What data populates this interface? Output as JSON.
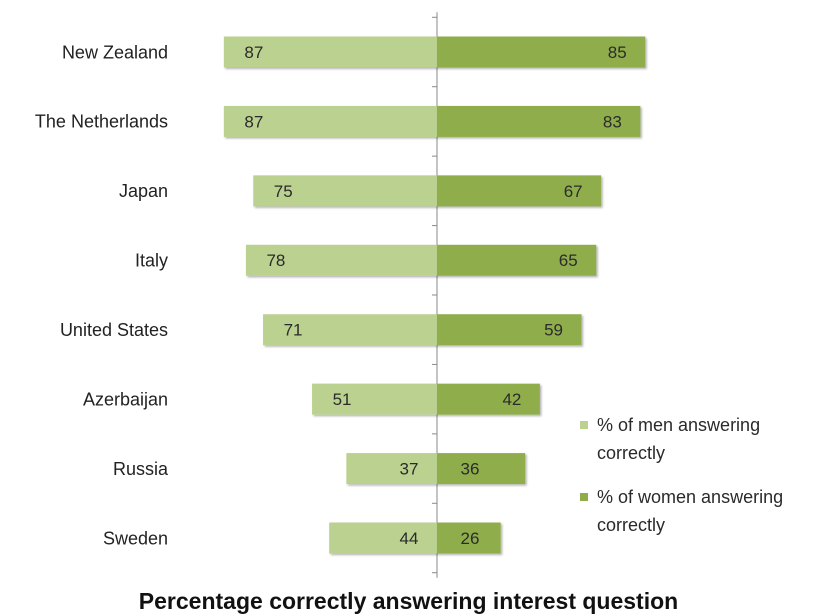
{
  "chart_data": {
    "type": "bar",
    "orientation": "horizontal",
    "title": "Percentage correctly answering interest question",
    "categories": [
      "New Zealand",
      "The Netherlands",
      "Japan",
      "Italy",
      "United States",
      "Azerbaijan",
      "Russia",
      "Sweden"
    ],
    "series": [
      {
        "name": "% of men answering correctly",
        "color": "#bbd18f",
        "values": [
          87,
          87,
          75,
          78,
          71,
          51,
          37,
          44
        ]
      },
      {
        "name": "% of women answering correctly",
        "color": "#8fae4b",
        "values": [
          85,
          83,
          67,
          65,
          59,
          42,
          36,
          26
        ]
      }
    ],
    "xlim": [
      0,
      100
    ],
    "grid": false,
    "data_labels": true,
    "legend": "right"
  }
}
